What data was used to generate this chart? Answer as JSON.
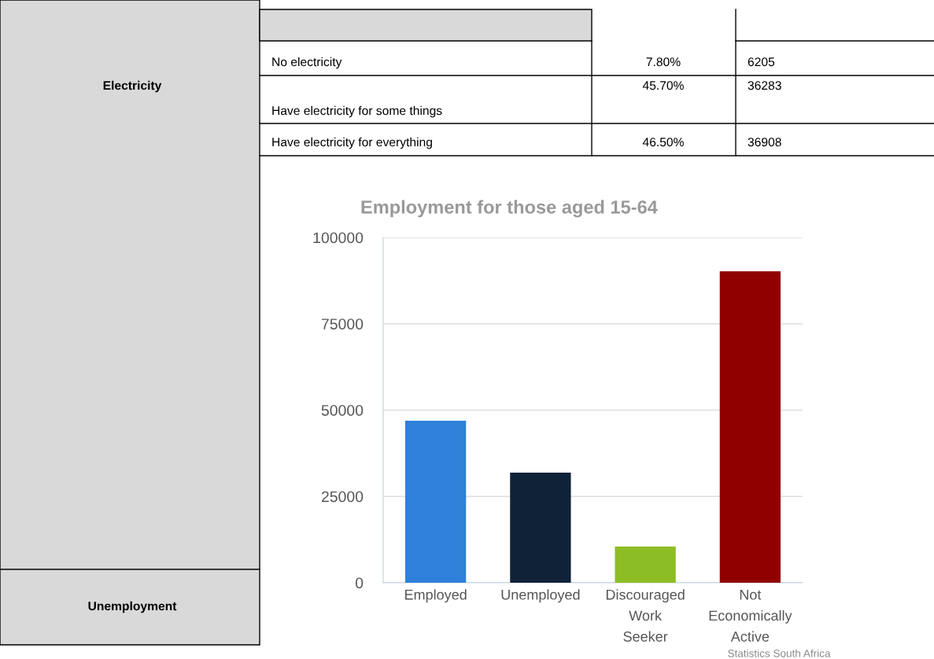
{
  "chart_data": {
    "type": "bar",
    "title": "Employment for those aged 15-64",
    "categories": [
      "Employed",
      "Unemployed",
      "Discouraged\nWork\nSeeker",
      "Not\nEconomically\nActive"
    ],
    "values": [
      46900,
      31900,
      10500,
      90200
    ],
    "colors": [
      "#2f80d8",
      "#0f2238",
      "#8cbd24",
      "#900000"
    ],
    "ylim": [
      0,
      100000
    ],
    "yticks": [
      0,
      25000,
      50000,
      75000,
      100000
    ],
    "grid": "y",
    "annotations": [
      "No electricity",
      "7.80%",
      "6205",
      "Electricity",
      "Have electricity for some things",
      "45.70%",
      "36283",
      "Have electricity for everything",
      "46.50%",
      "36908",
      "Unemployment",
      "Statistics South Africa"
    ]
  }
}
